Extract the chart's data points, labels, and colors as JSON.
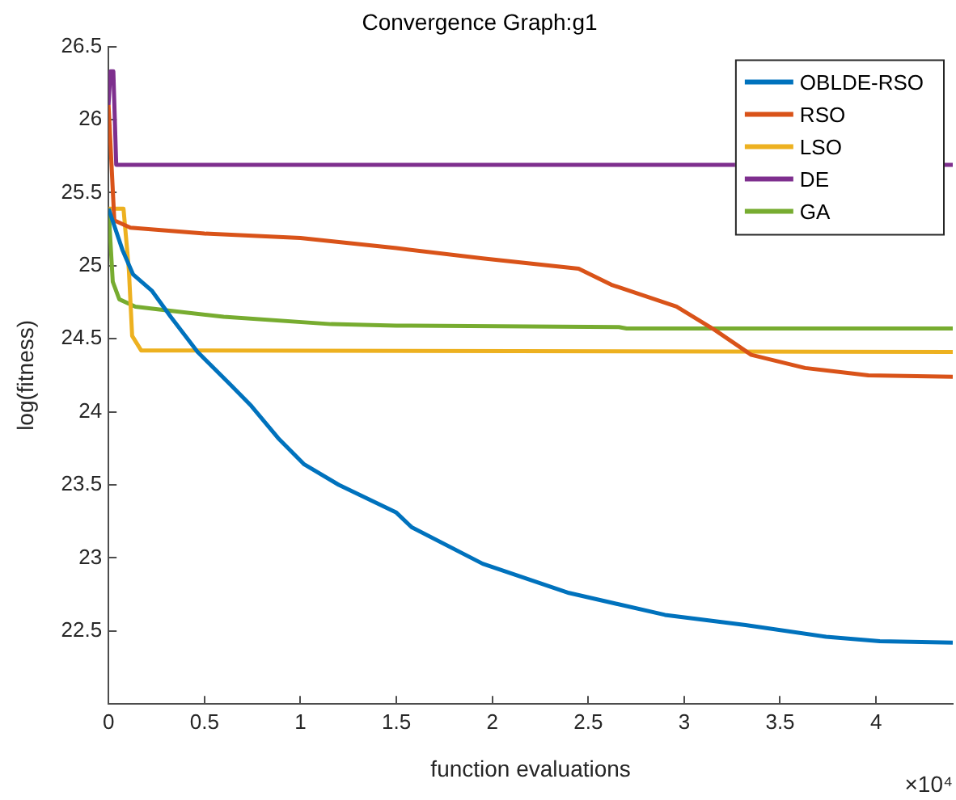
{
  "chart_data": {
    "type": "line",
    "title": "Convergence Graph:g1",
    "xlabel": "function evaluations",
    "ylabel": "log(fitness)",
    "annotations": [
      "×10⁴"
    ],
    "xlim": [
      0,
      4.4
    ],
    "ylim": [
      22,
      26.5
    ],
    "xticks": [
      0,
      0.5,
      1,
      1.5,
      2,
      2.5,
      3,
      3.5,
      4
    ],
    "yticks": [
      22.5,
      23,
      23.5,
      24,
      24.5,
      25,
      25.5,
      26,
      26.5
    ],
    "grid": false,
    "legend": "top right",
    "marker": "none",
    "line_style": "solid",
    "series": [
      {
        "name": "OBLDE-RSO",
        "color": "#0072bd",
        "x": [
          0,
          0.072,
          0.128,
          0.225,
          0.324,
          0.464,
          0.632,
          0.744,
          0.884,
          1.02,
          1.2,
          1.5,
          1.58,
          1.95,
          2.4,
          2.9,
          3.32,
          3.74,
          4.02,
          4.4
        ],
        "values": [
          25.39,
          25.11,
          24.94,
          24.83,
          24.65,
          24.41,
          24.19,
          24.04,
          23.82,
          23.64,
          23.5,
          23.31,
          23.21,
          22.96,
          22.76,
          22.61,
          22.54,
          22.46,
          22.43,
          22.42
        ]
      },
      {
        "name": "RSO",
        "color": "#d95319",
        "x": [
          0,
          0.03,
          0.114,
          0.5,
          1,
          1.5,
          1.95,
          2.45,
          2.62,
          2.96,
          3.16,
          3.35,
          3.63,
          3.96,
          4.4
        ],
        "values": [
          26.1,
          25.31,
          25.26,
          25.22,
          25.19,
          25.12,
          25.05,
          24.98,
          24.87,
          24.72,
          24.56,
          24.39,
          24.3,
          24.25,
          24.24
        ]
      },
      {
        "name": "LSO",
        "color": "#edb120",
        "x": [
          0,
          0.078,
          0.106,
          0.123,
          0.17,
          4.4
        ],
        "values": [
          25.39,
          25.39,
          24.97,
          24.52,
          24.42,
          24.41
        ]
      },
      {
        "name": "DE",
        "color": "#7e2f8e",
        "x": [
          0,
          0.01,
          0.025,
          0.04,
          4.4
        ],
        "values": [
          26.1,
          26.33,
          26.33,
          25.69,
          25.69
        ]
      },
      {
        "name": "GA",
        "color": "#77ac30",
        "x": [
          0,
          0.022,
          0.056,
          0.14,
          0.265,
          0.6,
          1.16,
          1.5,
          2.66,
          2.7,
          4.4
        ],
        "values": [
          25.39,
          24.89,
          24.77,
          24.72,
          24.7,
          24.65,
          24.6,
          24.59,
          24.58,
          24.57,
          24.57
        ]
      }
    ]
  }
}
